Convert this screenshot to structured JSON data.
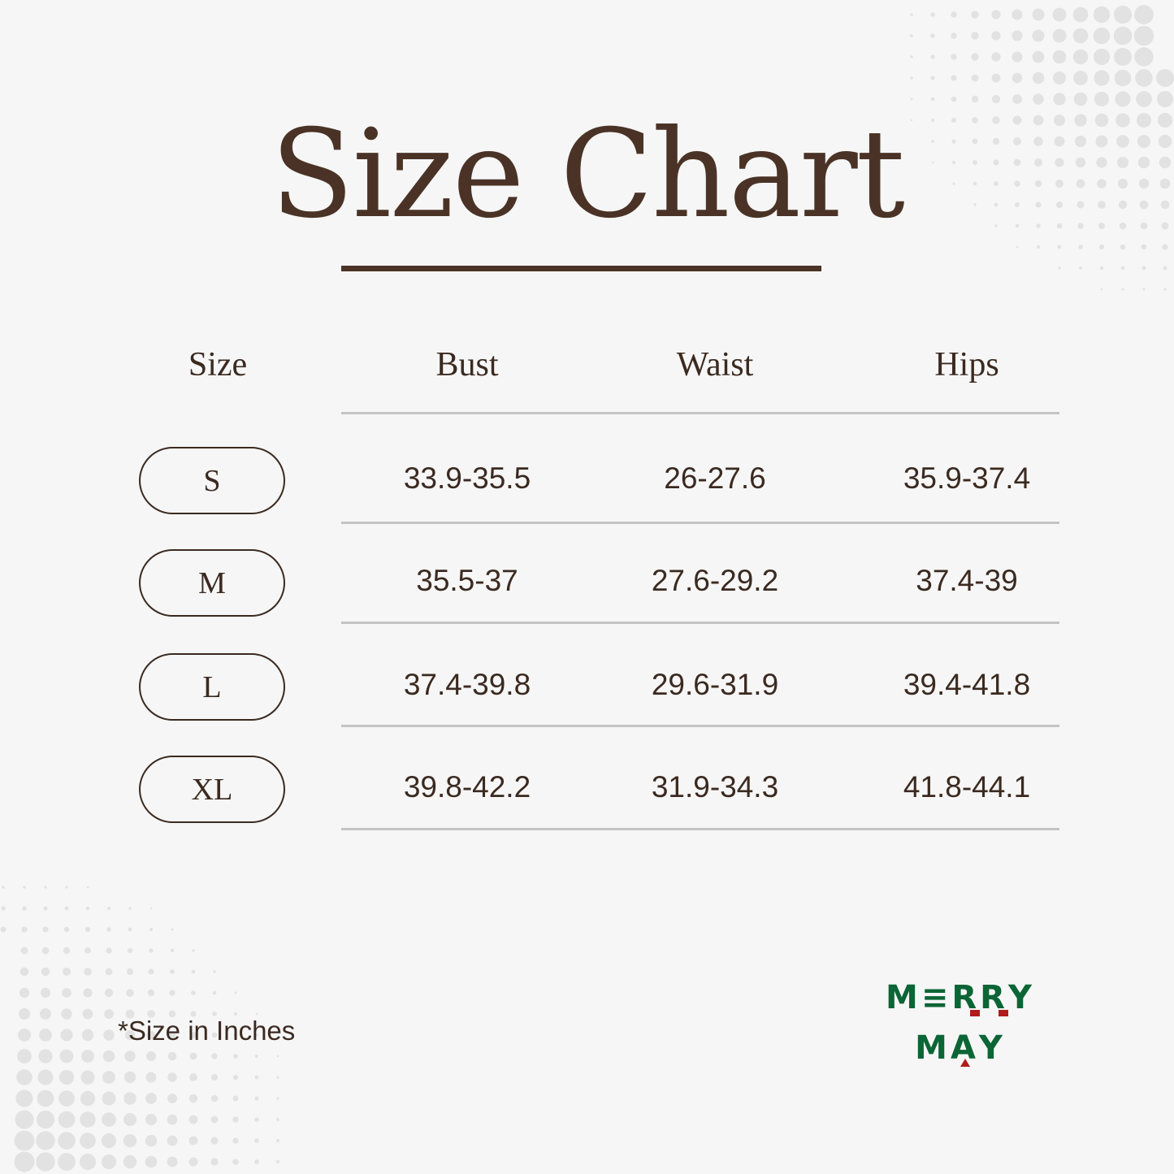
{
  "title": "Size Chart",
  "table": {
    "headers": [
      "Size",
      "Bust",
      "Waist",
      "Hips"
    ],
    "rows": [
      {
        "size": "S",
        "bust": "33.9-35.5",
        "waist": "26-27.6",
        "hips": "35.9-37.4"
      },
      {
        "size": "M",
        "bust": "35.5-37",
        "waist": "27.6-29.2",
        "hips": "37.4-39"
      },
      {
        "size": "L",
        "bust": "37.4-39.8",
        "waist": "29.6-31.9",
        "hips": "39.4-41.8"
      },
      {
        "size": "XL",
        "bust": "39.8-42.2",
        "waist": "31.9-34.3",
        "hips": "41.8-44.1"
      }
    ]
  },
  "footnote": "*Size in Inches",
  "logo": {
    "line1": "MERRY",
    "line2": "MAY",
    "green": "#0b6535",
    "red": "#b01c1c"
  },
  "colors": {
    "text": "#3b2a20",
    "background": "#f6f6f6",
    "divider": "#c4c4c4"
  }
}
